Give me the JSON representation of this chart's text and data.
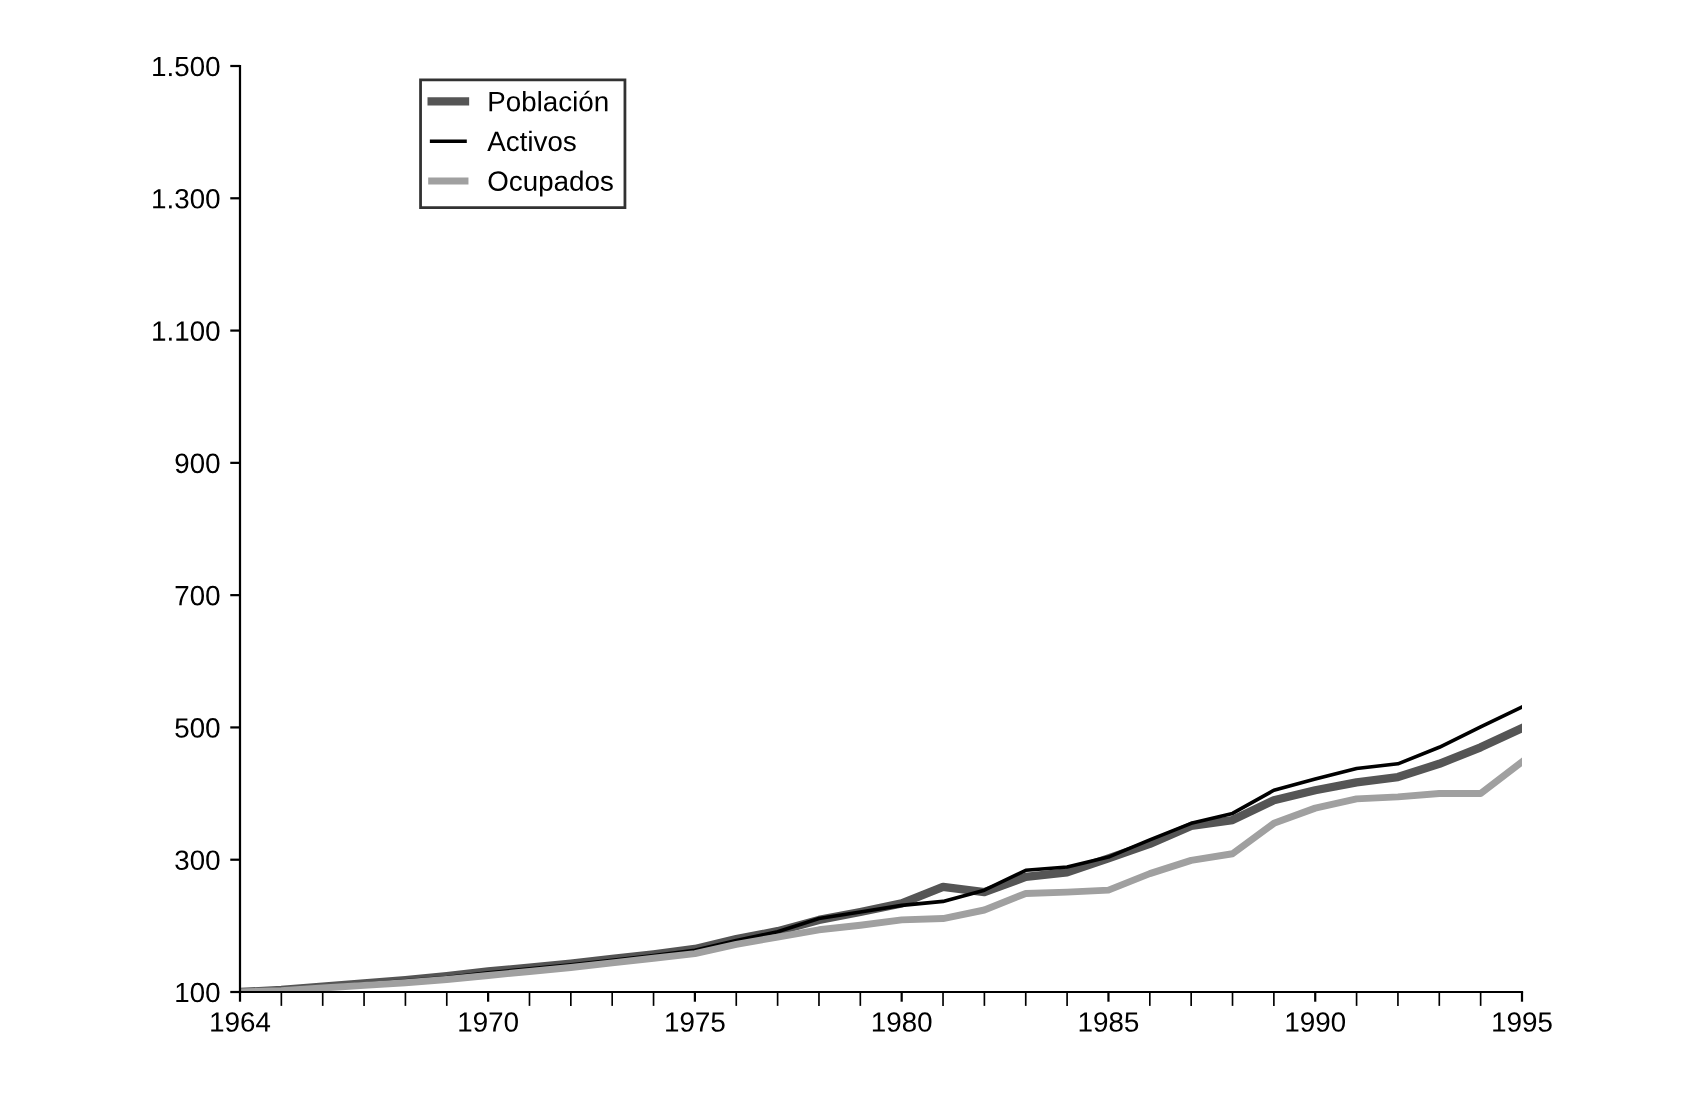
{
  "chart_data": {
    "type": "line",
    "x": [
      1964,
      1965,
      1966,
      1967,
      1968,
      1969,
      1970,
      1971,
      1972,
      1973,
      1974,
      1975,
      1976,
      1977,
      1978,
      1979,
      1980,
      1981,
      1982,
      1983,
      1984,
      1985,
      1986,
      1987,
      1988,
      1989,
      1990,
      1991,
      1992,
      1993,
      1994,
      1995
    ],
    "series": [
      {
        "name": "Población",
        "color": "#555555",
        "values": [
          100,
          103,
          108,
          113,
          118,
          124,
          131,
          137,
          143,
          150,
          157,
          165,
          180,
          192,
          209,
          221,
          234,
          259,
          251,
          274,
          281,
          302,
          324,
          351,
          360,
          390,
          405,
          417,
          425,
          445,
          470,
          499
        ]
      },
      {
        "name": "Activos",
        "color": "#000000",
        "values": [
          100,
          103,
          107,
          112,
          117,
          122,
          129,
          135,
          141,
          148,
          155,
          163,
          178,
          191,
          211,
          221,
          231,
          237,
          254,
          284,
          289,
          304,
          330,
          355,
          370,
          405,
          422,
          438,
          445,
          470,
          501,
          531
        ]
      },
      {
        "name": "Ocupados",
        "color": "#a0a0a0",
        "values": [
          100,
          102,
          106,
          110,
          114,
          119,
          125,
          131,
          137,
          144,
          151,
          158,
          172,
          183,
          194,
          201,
          209,
          211,
          224,
          249,
          251,
          254,
          279,
          299,
          309,
          355,
          378,
          392,
          395,
          400,
          400,
          448
        ]
      }
    ],
    "xlim": [
      1964,
      1995
    ],
    "xticks": [
      1964,
      1970,
      1975,
      1980,
      1985,
      1990,
      1995
    ],
    "ylim": [
      100,
      1500
    ],
    "yticks": [
      {
        "value": 100,
        "label": "100"
      },
      {
        "value": 300,
        "label": "300"
      },
      {
        "value": 500,
        "label": "500"
      },
      {
        "value": 700,
        "label": "700"
      },
      {
        "value": 900,
        "label": "900"
      },
      {
        "value": 1100,
        "label": "1.100"
      },
      {
        "value": 1300,
        "label": "1.300"
      },
      {
        "value": 1500,
        "label": "1.500"
      }
    ],
    "grid": false,
    "legend": "top left",
    "marker": "none",
    "line_style": "solid"
  }
}
